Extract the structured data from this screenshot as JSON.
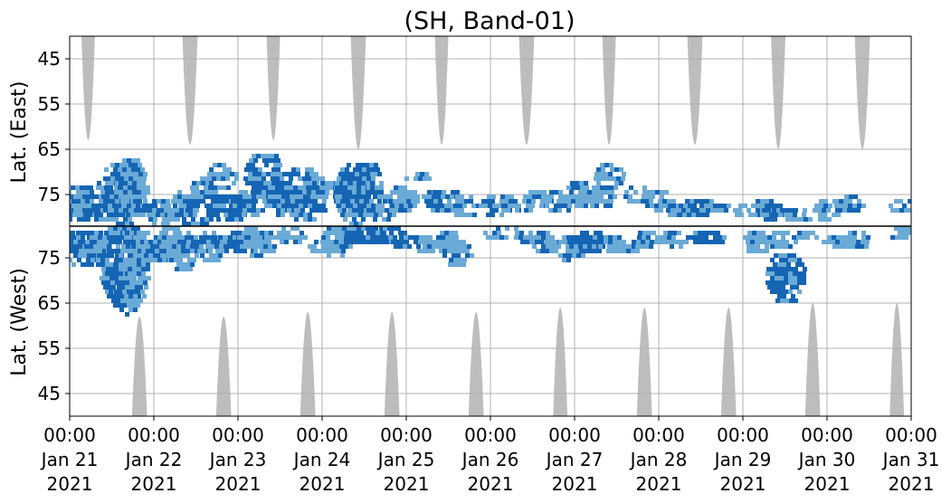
{
  "chart_data": {
    "type": "heatmap",
    "title": "(SH, Band-01)",
    "xlabel": "",
    "ylabel_top": "Lat. (East)",
    "ylabel_bottom": "Lat. (West)",
    "x_range": [
      "2021-01-21T00:00",
      "2021-01-31T00:00"
    ],
    "x_ticks": [
      {
        "time": "00:00",
        "date": "Jan 21",
        "year": "2021"
      },
      {
        "time": "00:00",
        "date": "Jan 22",
        "year": "2021"
      },
      {
        "time": "00:00",
        "date": "Jan 23",
        "year": "2021"
      },
      {
        "time": "00:00",
        "date": "Jan 24",
        "year": "2021"
      },
      {
        "time": "00:00",
        "date": "Jan 25",
        "year": "2021"
      },
      {
        "time": "00:00",
        "date": "Jan 26",
        "year": "2021"
      },
      {
        "time": "00:00",
        "date": "Jan 27",
        "year": "2021"
      },
      {
        "time": "00:00",
        "date": "Jan 28",
        "year": "2021"
      },
      {
        "time": "00:00",
        "date": "Jan 29",
        "year": "2021"
      },
      {
        "time": "00:00",
        "date": "Jan 30",
        "year": "2021"
      },
      {
        "time": "00:00",
        "date": "Jan 31",
        "year": "2021"
      }
    ],
    "y_axis": "folded latitude: East 40–82 (top, decreasing downward to the divider), West 82–40 (bottom)",
    "y_ticks_east": [
      45,
      55,
      65,
      75
    ],
    "y_ticks_west": [
      75,
      65,
      55,
      45
    ],
    "ylim": [
      40,
      82
    ],
    "grid": true,
    "colors": {
      "activity_light": "#6aaad6",
      "activity_dark": "#1565b4",
      "night": "#bdbdbd",
      "divider": "#000000",
      "grid": "#b0b0b0"
    },
    "night_east": [
      {
        "center": 0.22,
        "width": 0.16,
        "min_lat": 63
      },
      {
        "center": 1.43,
        "width": 0.18,
        "min_lat": 64
      },
      {
        "center": 2.42,
        "width": 0.16,
        "min_lat": 63
      },
      {
        "center": 3.43,
        "width": 0.18,
        "min_lat": 65
      },
      {
        "center": 4.42,
        "width": 0.16,
        "min_lat": 64
      },
      {
        "center": 5.43,
        "width": 0.18,
        "min_lat": 64
      },
      {
        "center": 6.41,
        "width": 0.16,
        "min_lat": 64
      },
      {
        "center": 7.43,
        "width": 0.18,
        "min_lat": 64
      },
      {
        "center": 8.42,
        "width": 0.17,
        "min_lat": 65
      },
      {
        "center": 9.42,
        "width": 0.18,
        "min_lat": 65
      }
    ],
    "night_west": [
      {
        "center": 0.83,
        "width": 0.18,
        "min_lat": 62
      },
      {
        "center": 1.83,
        "width": 0.18,
        "min_lat": 62
      },
      {
        "center": 2.83,
        "width": 0.18,
        "min_lat": 63
      },
      {
        "center": 3.83,
        "width": 0.18,
        "min_lat": 63
      },
      {
        "center": 4.83,
        "width": 0.18,
        "min_lat": 63
      },
      {
        "center": 5.83,
        "width": 0.17,
        "min_lat": 64
      },
      {
        "center": 6.83,
        "width": 0.18,
        "min_lat": 64
      },
      {
        "center": 7.83,
        "width": 0.18,
        "min_lat": 64
      },
      {
        "center": 8.83,
        "width": 0.18,
        "min_lat": 65
      },
      {
        "center": 9.83,
        "width": 0.17,
        "min_lat": 65
      }
    ],
    "activity": [
      {
        "day": 0.05,
        "hemi": "E",
        "lat_from": 79,
        "lat_to": 75,
        "level": 2
      },
      {
        "day": 0.1,
        "hemi": "E",
        "lat_from": 81,
        "lat_to": 73,
        "level": 2
      },
      {
        "day": 0.18,
        "hemi": "E",
        "lat_from": 80,
        "lat_to": 76,
        "level": 1
      },
      {
        "day": 0.05,
        "hemi": "W",
        "lat_from": 81,
        "lat_to": 77,
        "level": 2
      },
      {
        "day": 0.15,
        "hemi": "W",
        "lat_from": 81,
        "lat_to": 73,
        "level": 2
      },
      {
        "day": 0.28,
        "hemi": "W",
        "lat_from": 79,
        "lat_to": 75,
        "level": 1
      },
      {
        "day": 0.38,
        "hemi": "E",
        "lat_from": 81,
        "lat_to": 75,
        "level": 2
      },
      {
        "day": 0.45,
        "hemi": "W",
        "lat_from": 82,
        "lat_to": 78,
        "level": 1
      },
      {
        "day": 0.55,
        "hemi": "E",
        "lat_from": 80,
        "lat_to": 69,
        "level": 2
      },
      {
        "day": 0.55,
        "hemi": "W",
        "lat_from": 81,
        "lat_to": 66,
        "level": 2
      },
      {
        "day": 0.65,
        "hemi": "E",
        "lat_from": 82,
        "lat_to": 67,
        "level": 2
      },
      {
        "day": 0.65,
        "hemi": "W",
        "lat_from": 82,
        "lat_to": 62,
        "level": 2
      },
      {
        "day": 0.75,
        "hemi": "E",
        "lat_from": 80,
        "lat_to": 68,
        "level": 1
      },
      {
        "day": 0.75,
        "hemi": "W",
        "lat_from": 80,
        "lat_to": 64,
        "level": 1
      },
      {
        "day": 0.9,
        "hemi": "W",
        "lat_from": 81,
        "lat_to": 75,
        "level": 1
      },
      {
        "day": 1.0,
        "hemi": "E",
        "lat_from": 80,
        "lat_to": 77,
        "level": 2
      },
      {
        "day": 1.08,
        "hemi": "E",
        "lat_from": 82,
        "lat_to": 76,
        "level": 1
      },
      {
        "day": 1.08,
        "hemi": "W",
        "lat_from": 80,
        "lat_to": 74,
        "level": 2
      },
      {
        "day": 1.2,
        "hemi": "W",
        "lat_from": 82,
        "lat_to": 74,
        "level": 1
      },
      {
        "day": 1.28,
        "hemi": "E",
        "lat_from": 81,
        "lat_to": 77,
        "level": 1
      },
      {
        "day": 1.33,
        "hemi": "W",
        "lat_from": 81,
        "lat_to": 72,
        "level": 1
      },
      {
        "day": 1.38,
        "hemi": "E",
        "lat_from": 79,
        "lat_to": 74,
        "level": 1
      },
      {
        "day": 1.48,
        "hemi": "E",
        "lat_from": 82,
        "lat_to": 76,
        "level": 2
      },
      {
        "day": 1.5,
        "hemi": "W",
        "lat_from": 80,
        "lat_to": 76,
        "level": 2
      },
      {
        "day": 1.6,
        "hemi": "E",
        "lat_from": 76,
        "lat_to": 71,
        "level": 1
      },
      {
        "day": 1.68,
        "hemi": "W",
        "lat_from": 81,
        "lat_to": 74,
        "level": 1
      },
      {
        "day": 1.8,
        "hemi": "E",
        "lat_from": 74,
        "lat_to": 68,
        "level": 1
      },
      {
        "day": 1.88,
        "hemi": "E",
        "lat_from": 81,
        "lat_to": 75,
        "level": 2
      },
      {
        "day": 1.9,
        "hemi": "W",
        "lat_from": 80,
        "lat_to": 76,
        "level": 2
      },
      {
        "day": 2.03,
        "hemi": "E",
        "lat_from": 80,
        "lat_to": 77,
        "level": 2
      },
      {
        "day": 2.05,
        "hemi": "W",
        "lat_from": 81,
        "lat_to": 77,
        "level": 2
      },
      {
        "day": 2.15,
        "hemi": "E",
        "lat_from": 79,
        "lat_to": 74,
        "level": 2
      },
      {
        "day": 2.18,
        "hemi": "W",
        "lat_from": 82,
        "lat_to": 75,
        "level": 1
      },
      {
        "day": 2.3,
        "hemi": "E",
        "lat_from": 76,
        "lat_to": 66,
        "level": 2
      },
      {
        "day": 2.3,
        "hemi": "W",
        "lat_from": 81,
        "lat_to": 76,
        "level": 1
      },
      {
        "day": 2.45,
        "hemi": "E",
        "lat_from": 78,
        "lat_to": 72,
        "level": 1
      },
      {
        "day": 2.58,
        "hemi": "E",
        "lat_from": 80,
        "lat_to": 73,
        "level": 2
      },
      {
        "day": 2.62,
        "hemi": "W",
        "lat_from": 82,
        "lat_to": 78,
        "level": 1
      },
      {
        "day": 2.72,
        "hemi": "E",
        "lat_from": 76,
        "lat_to": 69,
        "level": 2
      },
      {
        "day": 2.8,
        "hemi": "E",
        "lat_from": 81,
        "lat_to": 74,
        "level": 2
      },
      {
        "day": 2.92,
        "hemi": "E",
        "lat_from": 76,
        "lat_to": 71,
        "level": 1
      },
      {
        "day": 3.0,
        "hemi": "W",
        "lat_from": 79,
        "lat_to": 76,
        "level": 1
      },
      {
        "day": 3.08,
        "hemi": "E",
        "lat_from": 74,
        "lat_to": 72,
        "level": 1
      },
      {
        "day": 3.15,
        "hemi": "W",
        "lat_from": 82,
        "lat_to": 75,
        "level": 1
      },
      {
        "day": 3.3,
        "hemi": "E",
        "lat_from": 80,
        "lat_to": 70,
        "level": 1
      },
      {
        "day": 3.38,
        "hemi": "E",
        "lat_from": 82,
        "lat_to": 68,
        "level": 2
      },
      {
        "day": 3.38,
        "hemi": "W",
        "lat_from": 82,
        "lat_to": 78,
        "level": 2
      },
      {
        "day": 3.48,
        "hemi": "E",
        "lat_from": 80,
        "lat_to": 68,
        "level": 2
      },
      {
        "day": 3.55,
        "hemi": "W",
        "lat_from": 82,
        "lat_to": 78,
        "level": 2
      },
      {
        "day": 3.7,
        "hemi": "E",
        "lat_from": 81,
        "lat_to": 75,
        "level": 1
      },
      {
        "day": 3.75,
        "hemi": "W",
        "lat_from": 82,
        "lat_to": 78,
        "level": 2
      },
      {
        "day": 3.95,
        "hemi": "E",
        "lat_from": 79,
        "lat_to": 73,
        "level": 1
      },
      {
        "day": 4.05,
        "hemi": "W",
        "lat_from": 80,
        "lat_to": 77,
        "level": 2
      },
      {
        "day": 4.15,
        "hemi": "E",
        "lat_from": 72,
        "lat_to": 70,
        "level": 1
      },
      {
        "day": 4.25,
        "hemi": "W",
        "lat_from": 80,
        "lat_to": 76,
        "level": 1
      },
      {
        "day": 4.35,
        "hemi": "E",
        "lat_from": 76,
        "lat_to": 74,
        "level": 1
      },
      {
        "day": 4.45,
        "hemi": "E",
        "lat_from": 79,
        "lat_to": 74,
        "level": 2
      },
      {
        "day": 4.5,
        "hemi": "W",
        "lat_from": 81,
        "lat_to": 76,
        "level": 1
      },
      {
        "day": 4.6,
        "hemi": "W",
        "lat_from": 79,
        "lat_to": 73,
        "level": 1
      },
      {
        "day": 4.68,
        "hemi": "E",
        "lat_from": 80,
        "lat_to": 75,
        "level": 1
      },
      {
        "day": 5.1,
        "hemi": "E",
        "lat_from": 80,
        "lat_to": 75,
        "level": 2
      },
      {
        "day": 5.15,
        "hemi": "W",
        "lat_from": 82,
        "lat_to": 79,
        "level": 2
      },
      {
        "day": 5.3,
        "hemi": "E",
        "lat_from": 79,
        "lat_to": 77,
        "level": 1
      },
      {
        "day": 5.45,
        "hemi": "W",
        "lat_from": 81,
        "lat_to": 78,
        "level": 1
      },
      {
        "day": 5.55,
        "hemi": "E",
        "lat_from": 78,
        "lat_to": 74,
        "level": 1
      },
      {
        "day": 5.65,
        "hemi": "W",
        "lat_from": 81,
        "lat_to": 76,
        "level": 1
      },
      {
        "day": 5.8,
        "hemi": "E",
        "lat_from": 79,
        "lat_to": 74,
        "level": 1
      },
      {
        "day": 5.95,
        "hemi": "W",
        "lat_from": 80,
        "lat_to": 74,
        "level": 1
      },
      {
        "day": 6.05,
        "hemi": "E",
        "lat_from": 78,
        "lat_to": 72,
        "level": 1
      },
      {
        "day": 6.15,
        "hemi": "W",
        "lat_from": 81,
        "lat_to": 76,
        "level": 2
      },
      {
        "day": 6.3,
        "hemi": "E",
        "lat_from": 78,
        "lat_to": 73,
        "level": 1
      },
      {
        "day": 6.4,
        "hemi": "E",
        "lat_from": 74,
        "lat_to": 68,
        "level": 1
      },
      {
        "day": 6.45,
        "hemi": "W",
        "lat_from": 80,
        "lat_to": 76,
        "level": 1
      },
      {
        "day": 6.62,
        "hemi": "W",
        "lat_from": 78,
        "lat_to": 76,
        "level": 1
      },
      {
        "day": 6.75,
        "hemi": "E",
        "lat_from": 77,
        "lat_to": 73,
        "level": 1
      },
      {
        "day": 6.85,
        "hemi": "W",
        "lat_from": 81,
        "lat_to": 77,
        "level": 1
      },
      {
        "day": 7.0,
        "hemi": "E",
        "lat_from": 79,
        "lat_to": 74,
        "level": 1
      },
      {
        "day": 7.15,
        "hemi": "W",
        "lat_from": 81,
        "lat_to": 77,
        "level": 1
      },
      {
        "day": 7.25,
        "hemi": "E",
        "lat_from": 80,
        "lat_to": 77,
        "level": 1
      },
      {
        "day": 7.45,
        "hemi": "E",
        "lat_from": 80,
        "lat_to": 76,
        "level": 2
      },
      {
        "day": 7.55,
        "hemi": "W",
        "lat_from": 81,
        "lat_to": 78,
        "level": 2
      },
      {
        "day": 7.65,
        "hemi": "E",
        "lat_from": 79,
        "lat_to": 76,
        "level": 1
      },
      {
        "day": 8.05,
        "hemi": "E",
        "lat_from": 80,
        "lat_to": 77,
        "level": 1
      },
      {
        "day": 8.15,
        "hemi": "W",
        "lat_from": 81,
        "lat_to": 76,
        "level": 1
      },
      {
        "day": 8.25,
        "hemi": "E",
        "lat_from": 81,
        "lat_to": 76,
        "level": 1
      },
      {
        "day": 8.4,
        "hemi": "E",
        "lat_from": 80,
        "lat_to": 77,
        "level": 2
      },
      {
        "day": 8.45,
        "hemi": "W",
        "lat_from": 81,
        "lat_to": 77,
        "level": 1
      },
      {
        "day": 8.5,
        "hemi": "W",
        "lat_from": 76,
        "lat_to": 65,
        "level": 2
      },
      {
        "day": 8.65,
        "hemi": "E",
        "lat_from": 81,
        "lat_to": 78,
        "level": 1
      },
      {
        "day": 8.75,
        "hemi": "W",
        "lat_from": 81,
        "lat_to": 79,
        "level": 1
      },
      {
        "day": 9.0,
        "hemi": "E",
        "lat_from": 81,
        "lat_to": 76,
        "level": 1
      },
      {
        "day": 9.1,
        "hemi": "W",
        "lat_from": 80,
        "lat_to": 77,
        "level": 1
      },
      {
        "day": 9.25,
        "hemi": "E",
        "lat_from": 79,
        "lat_to": 75,
        "level": 1
      },
      {
        "day": 9.35,
        "hemi": "W",
        "lat_from": 81,
        "lat_to": 77,
        "level": 1
      },
      {
        "day": 9.9,
        "hemi": "E",
        "lat_from": 79,
        "lat_to": 76,
        "level": 1
      },
      {
        "day": 9.9,
        "hemi": "W",
        "lat_from": 82,
        "lat_to": 79,
        "level": 1
      }
    ]
  }
}
